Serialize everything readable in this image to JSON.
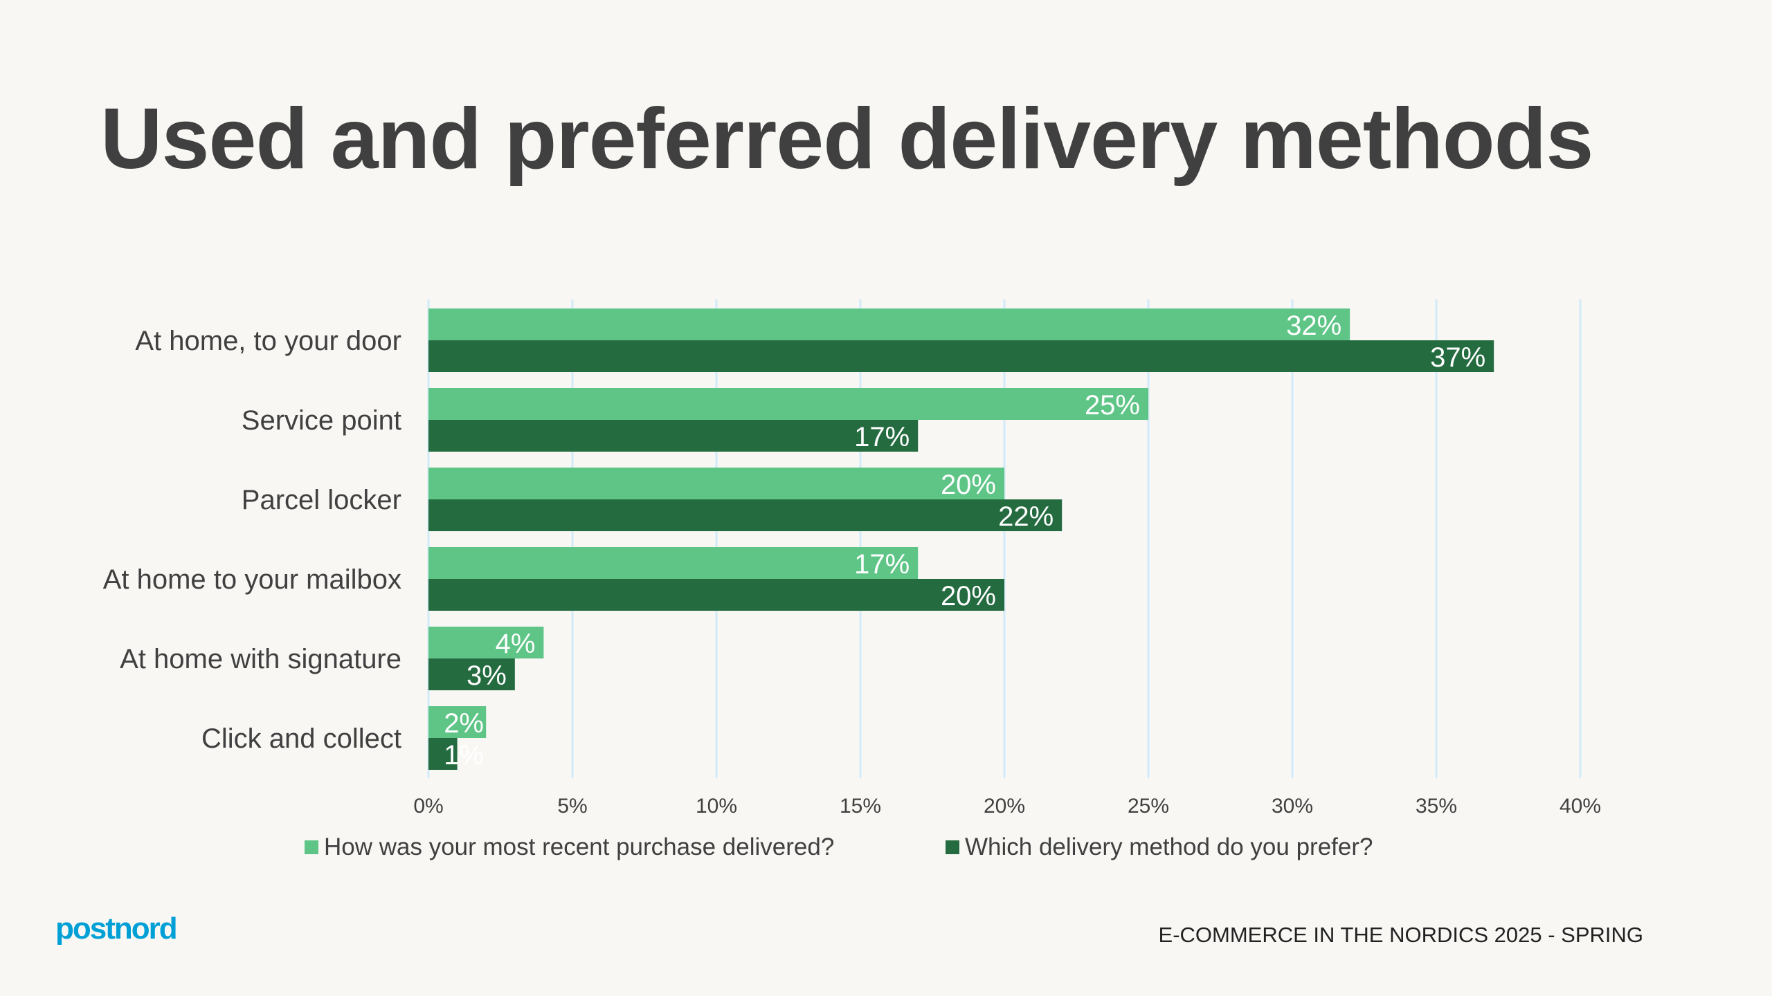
{
  "title": "Used and preferred delivery methods",
  "chart_data": {
    "type": "bar",
    "orientation": "horizontal",
    "categories": [
      "At home, to your door",
      "Service point",
      "Parcel locker",
      "At home to your mailbox",
      "At home with signature",
      "Click and collect"
    ],
    "series": [
      {
        "name": "How was your most recent purchase delivered?",
        "values": [
          32,
          25,
          20,
          17,
          4,
          2
        ],
        "color": "#5fc587"
      },
      {
        "name": "Which delivery method do you prefer?",
        "values": [
          37,
          17,
          22,
          20,
          3,
          1
        ],
        "color": "#246b40"
      }
    ],
    "xlim": [
      0,
      40
    ],
    "xticks": [
      0,
      5,
      10,
      15,
      20,
      25,
      30,
      35,
      40
    ],
    "tick_format": "%",
    "data_labels": true,
    "grid": true,
    "grid_color": "#d2ebf8",
    "legend_position": "bottom"
  },
  "logo": "postnord",
  "footer": "E-COMMERCE IN THE NORDICS 2025 - SPRING"
}
